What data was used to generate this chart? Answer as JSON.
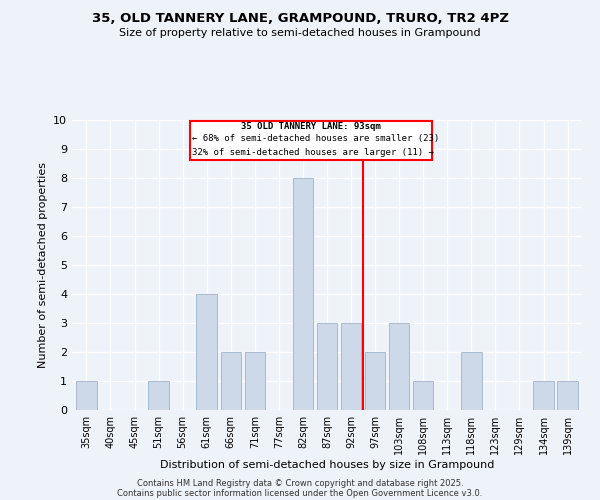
{
  "title": "35, OLD TANNERY LANE, GRAMPOUND, TRURO, TR2 4PZ",
  "subtitle": "Size of property relative to semi-detached houses in Grampound",
  "xlabel": "Distribution of semi-detached houses by size in Grampound",
  "ylabel": "Number of semi-detached properties",
  "categories": [
    "35sqm",
    "40sqm",
    "45sqm",
    "51sqm",
    "56sqm",
    "61sqm",
    "66sqm",
    "71sqm",
    "77sqm",
    "82sqm",
    "87sqm",
    "92sqm",
    "97sqm",
    "103sqm",
    "108sqm",
    "113sqm",
    "118sqm",
    "123sqm",
    "129sqm",
    "134sqm",
    "139sqm"
  ],
  "values": [
    1,
    0,
    0,
    1,
    0,
    4,
    2,
    2,
    0,
    8,
    3,
    3,
    2,
    3,
    1,
    0,
    2,
    0,
    0,
    1,
    1
  ],
  "bar_color": "#cdd8e8",
  "bar_edgecolor": "#a0b4cc",
  "reference_line_x": 11.5,
  "annotation_line1": "35 OLD TANNERY LANE: 93sqm",
  "annotation_line2": "← 68% of semi-detached houses are smaller (23)",
  "annotation_line3": "32% of semi-detached houses are larger (11) →",
  "ylim": [
    0,
    10
  ],
  "yticks": [
    0,
    1,
    2,
    3,
    4,
    5,
    6,
    7,
    8,
    9,
    10
  ],
  "background_color": "#eef2f9",
  "footer_line1": "Contains HM Land Registry data © Crown copyright and database right 2025.",
  "footer_line2": "Contains public sector information licensed under the Open Government Licence v3.0."
}
